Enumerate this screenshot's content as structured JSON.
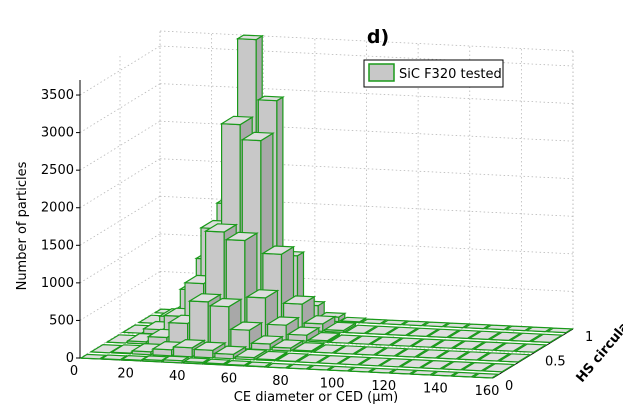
{
  "chart_data": {
    "type": "bar3d",
    "title": "d)",
    "xlabel": "CE diameter or CED (μm)",
    "ylabel": "HS circularity",
    "zlabel": "Number of particles",
    "x_ticks": [
      "0",
      "20",
      "40",
      "60",
      "80",
      "100",
      "120",
      "140",
      "160"
    ],
    "y_ticks": [
      "0",
      "0.5",
      "1"
    ],
    "z_ticks": [
      "0",
      "500",
      "1000",
      "1500",
      "2000",
      "2500",
      "3000",
      "3500"
    ],
    "xlim": [
      0,
      160
    ],
    "ylim": [
      0,
      1
    ],
    "zlim": [
      0,
      3700
    ],
    "grid": true,
    "legend_position": "top-right",
    "series": [
      {
        "name": "SiC F320 tested",
        "color": "#c8c8c8",
        "edge_color": "#1a9a1a"
      }
    ],
    "x_bins": [
      4,
      12,
      20,
      28,
      36,
      44,
      52,
      60,
      68,
      76,
      84,
      92,
      100,
      108,
      116,
      124,
      132,
      140,
      148,
      156
    ],
    "y_bins": [
      0.0,
      0.2,
      0.4,
      0.6,
      0.8,
      1.0
    ],
    "values": [
      [
        0,
        0,
        0,
        0,
        0,
        0
      ],
      [
        5,
        10,
        30,
        60,
        100,
        60
      ],
      [
        10,
        40,
        100,
        250,
        470,
        750
      ],
      [
        20,
        80,
        300,
        700,
        1300,
        1500
      ],
      [
        30,
        120,
        600,
        1400,
        2700,
        3700
      ],
      [
        20,
        100,
        550,
        1300,
        2500,
        2900
      ],
      [
        15,
        60,
        250,
        550,
        1000,
        850
      ],
      [
        10,
        30,
        80,
        200,
        350,
        200
      ],
      [
        5,
        15,
        40,
        80,
        100,
        60
      ],
      [
        0,
        5,
        15,
        20,
        25,
        10
      ],
      [
        0,
        0,
        0,
        0,
        0,
        0
      ],
      [
        0,
        0,
        0,
        0,
        0,
        0
      ],
      [
        0,
        0,
        0,
        0,
        0,
        0
      ],
      [
        0,
        0,
        0,
        0,
        0,
        0
      ],
      [
        0,
        0,
        0,
        0,
        0,
        0
      ],
      [
        0,
        0,
        0,
        0,
        0,
        0
      ],
      [
        0,
        0,
        0,
        0,
        0,
        0
      ],
      [
        0,
        0,
        0,
        0,
        0,
        0
      ],
      [
        0,
        0,
        0,
        0,
        0,
        0
      ],
      [
        0,
        0,
        0,
        0,
        0,
        0
      ]
    ]
  }
}
